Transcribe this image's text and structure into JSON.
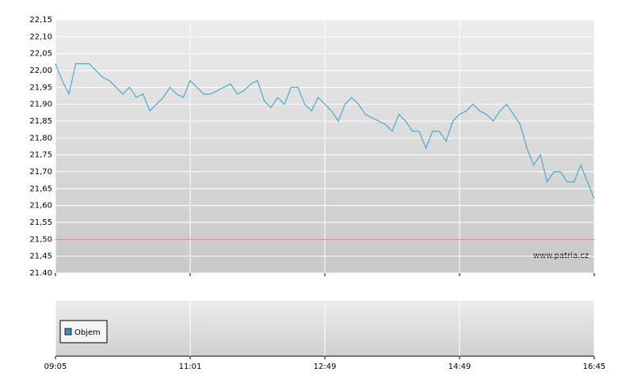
{
  "chart_data": {
    "type": "line",
    "categories": [
      "09:05",
      null,
      null,
      null,
      null,
      null,
      null,
      null,
      null,
      null,
      null,
      null,
      null,
      null,
      null,
      null,
      null,
      null,
      null,
      null,
      "11:01",
      null,
      null,
      null,
      null,
      null,
      null,
      null,
      null,
      null,
      null,
      null,
      null,
      null,
      null,
      null,
      null,
      null,
      null,
      null,
      "12:49",
      null,
      null,
      null,
      null,
      null,
      null,
      null,
      null,
      null,
      null,
      null,
      null,
      null,
      null,
      null,
      null,
      null,
      null,
      null,
      "14:49",
      null,
      null,
      null,
      null,
      null,
      null,
      null,
      null,
      null,
      null,
      null,
      null,
      null,
      null,
      null,
      null,
      null,
      null,
      null,
      "16:45"
    ],
    "series": [
      {
        "color": "#4aa8d0",
        "values": [
          22.02,
          21.97,
          21.93,
          22.02,
          22.02,
          22.02,
          22.0,
          21.98,
          21.97,
          21.95,
          21.93,
          21.95,
          21.92,
          21.93,
          21.88,
          21.9,
          21.92,
          21.95,
          21.93,
          21.92,
          21.97,
          21.95,
          21.93,
          21.93,
          21.94,
          21.95,
          21.96,
          21.93,
          21.94,
          21.96,
          21.97,
          21.91,
          21.89,
          21.92,
          21.9,
          21.95,
          21.95,
          21.9,
          21.88,
          21.92,
          21.9,
          21.88,
          21.85,
          21.9,
          21.92,
          21.9,
          21.87,
          21.86,
          21.85,
          21.84,
          21.82,
          21.87,
          21.85,
          21.82,
          21.82,
          21.77,
          21.82,
          21.82,
          21.79,
          21.85,
          21.87,
          21.88,
          21.9,
          21.88,
          21.87,
          21.85,
          21.88,
          21.9,
          21.87,
          21.84,
          21.77,
          21.72,
          21.75,
          21.67,
          21.7,
          21.7,
          21.67,
          21.67,
          21.72,
          21.67,
          21.62
        ]
      }
    ],
    "ylim": [
      21.4,
      22.15
    ],
    "yticks": [
      {
        "value": 21.4,
        "label": "21.40"
      },
      {
        "value": 21.45,
        "label": "21,45"
      },
      {
        "value": 21.5,
        "label": "21,50"
      },
      {
        "value": 21.55,
        "label": "21,55"
      },
      {
        "value": 21.6,
        "label": "21,60"
      },
      {
        "value": 21.65,
        "label": "21,65"
      },
      {
        "value": 21.7,
        "label": "21,70"
      },
      {
        "value": 21.75,
        "label": "21,75"
      },
      {
        "value": 21.8,
        "label": "21,80"
      },
      {
        "value": 21.85,
        "label": "21,85"
      },
      {
        "value": 21.9,
        "label": "21,90"
      },
      {
        "value": 21.95,
        "label": "21,95"
      },
      {
        "value": 22.0,
        "label": "22,00"
      },
      {
        "value": 22.05,
        "label": "22,05"
      },
      {
        "value": 22.1,
        "label": "22,10"
      },
      {
        "value": 22.15,
        "label": "22,15"
      }
    ],
    "reference_line": {
      "value": 21.5,
      "color": "#e08080"
    },
    "volume": {
      "name": "Objem",
      "color": "#3a8fc0"
    },
    "watermark": "www.patria.cz",
    "grid": true
  }
}
